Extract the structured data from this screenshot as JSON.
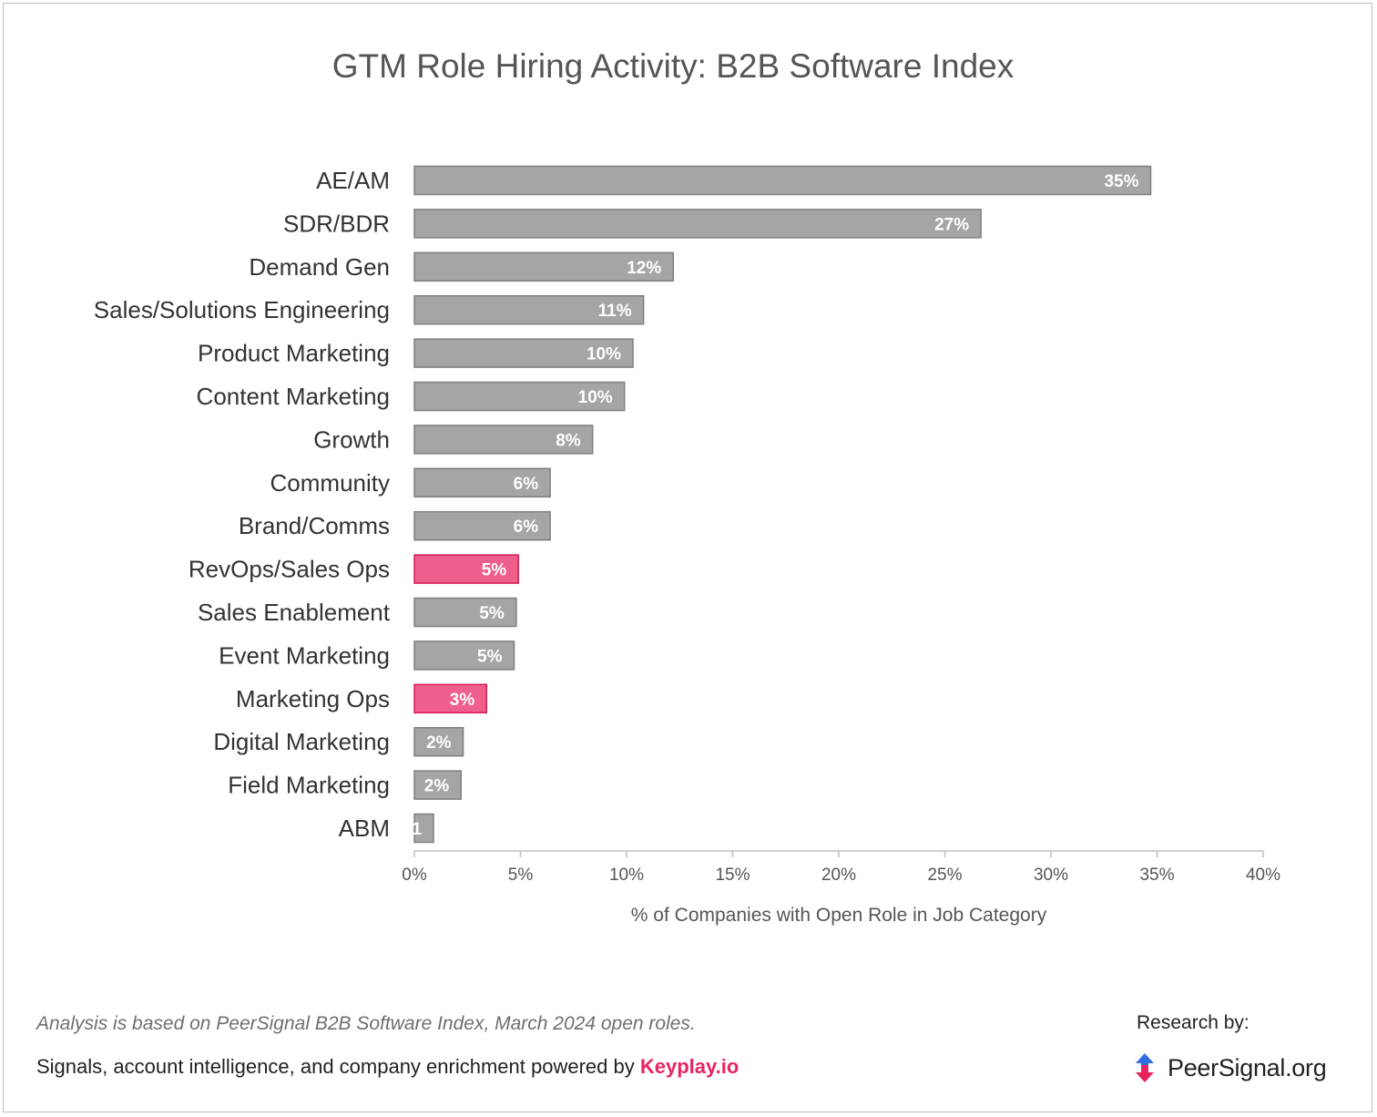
{
  "chart_data": {
    "type": "bar",
    "orientation": "horizontal",
    "title": "GTM Role Hiring Activity: B2B Software Index",
    "xlabel": "% of Companies with Open Role in Job Category",
    "xlim": [
      0,
      40
    ],
    "xticks": [
      "0%",
      "5%",
      "10%",
      "15%",
      "20%",
      "25%",
      "30%",
      "35%",
      "40%"
    ],
    "categories": [
      "AE/AM",
      "SDR/BDR",
      "Demand Gen",
      "Sales/Solutions Engineering",
      "Product Marketing",
      "Content Marketing",
      "Growth",
      "Community",
      "Brand/Comms",
      "RevOps/Sales Ops",
      "Sales Enablement",
      "Event Marketing",
      "Marketing Ops",
      "Digital Marketing",
      "Field Marketing",
      "ABM"
    ],
    "values": [
      34.7,
      26.7,
      12.2,
      10.8,
      10.3,
      9.9,
      8.4,
      6.4,
      6.4,
      4.9,
      4.8,
      4.7,
      3.4,
      2.3,
      2.2,
      0.9
    ],
    "labels": [
      "35%",
      "27%",
      "12%",
      "11%",
      "10%",
      "10%",
      "8%",
      "6%",
      "6%",
      "5%",
      "5%",
      "5%",
      "3%",
      "2%",
      "2%",
      "1"
    ],
    "highlighted": [
      "RevOps/Sales Ops",
      "Marketing Ops"
    ],
    "colors": {
      "bar": "#a5a5a5",
      "bar_border": "#7f7f7f",
      "highlight": "#ef5f8b",
      "highlight_border": "#d81b55"
    },
    "grid": false
  },
  "footer": {
    "note": "Analysis is based on PeerSignal B2B Software Index, March 2024 open roles.",
    "powered_text": "Signals, account intelligence, and company enrichment powered by ",
    "powered_link": "Keyplay.io",
    "research_label": "Research by:",
    "brand_name": "PeerSignal.org",
    "brand_icon": "peersignal-logo-icon",
    "link_color": "#e8245f"
  }
}
